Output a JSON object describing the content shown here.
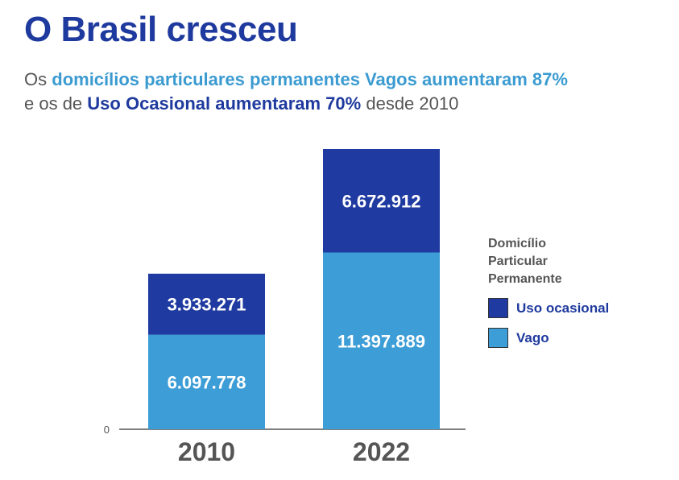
{
  "header": {
    "title": "O Brasil cresceu",
    "subtitle_parts": [
      "Os",
      "domicílios particulares permanentes Vagos aumentaram 87%",
      "e os de",
      "Uso Ocasional aumentaram 70%",
      "desde 2010"
    ]
  },
  "colors": {
    "uso_ocasional": "#1f3aa0",
    "vago": "#3d9dd6",
    "title": "#1f3a9e",
    "axis": "#555555"
  },
  "chart_data": {
    "type": "bar",
    "stacked": true,
    "categories": [
      "2010",
      "2022"
    ],
    "series": [
      {
        "name": "Vago",
        "values": [
          6097778,
          11397889
        ],
        "labels": [
          "6.097.778",
          "11.397.889"
        ]
      },
      {
        "name": "Uso ocasional",
        "values": [
          3933271,
          6672912
        ],
        "labels": [
          "3.933.271",
          "6.672.912"
        ]
      }
    ],
    "yticks": [
      {
        "value": 0,
        "label": "0"
      }
    ],
    "ylim": [
      0,
      18070801
    ],
    "legend": {
      "title": "Domicílio Particular Permanente",
      "position": "right"
    }
  }
}
